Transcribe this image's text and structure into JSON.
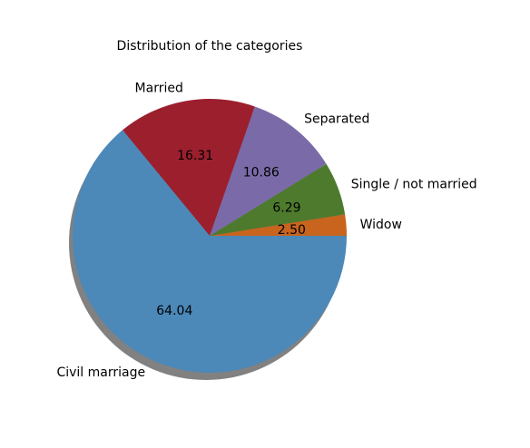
{
  "chart_data": {
    "type": "pie",
    "title": "Distribution of the categories",
    "start_angle_deg": 0,
    "direction": "counterclockwise",
    "shadow": true,
    "slices": [
      {
        "label": "Widow",
        "value": 2.5,
        "pct_text": "2.50",
        "color": "#c8641e"
      },
      {
        "label": "Single / not married",
        "value": 6.29,
        "pct_text": "6.29",
        "color": "#4e7a2d"
      },
      {
        "label": "Separated",
        "value": 10.86,
        "pct_text": "10.86",
        "color": "#7a6ba8"
      },
      {
        "label": "Married",
        "value": 16.31,
        "pct_text": "16.31",
        "color": "#9c1f2e"
      },
      {
        "label": "Civil marriage",
        "value": 64.04,
        "pct_text": "64.04",
        "color": "#4c88b8"
      }
    ]
  }
}
